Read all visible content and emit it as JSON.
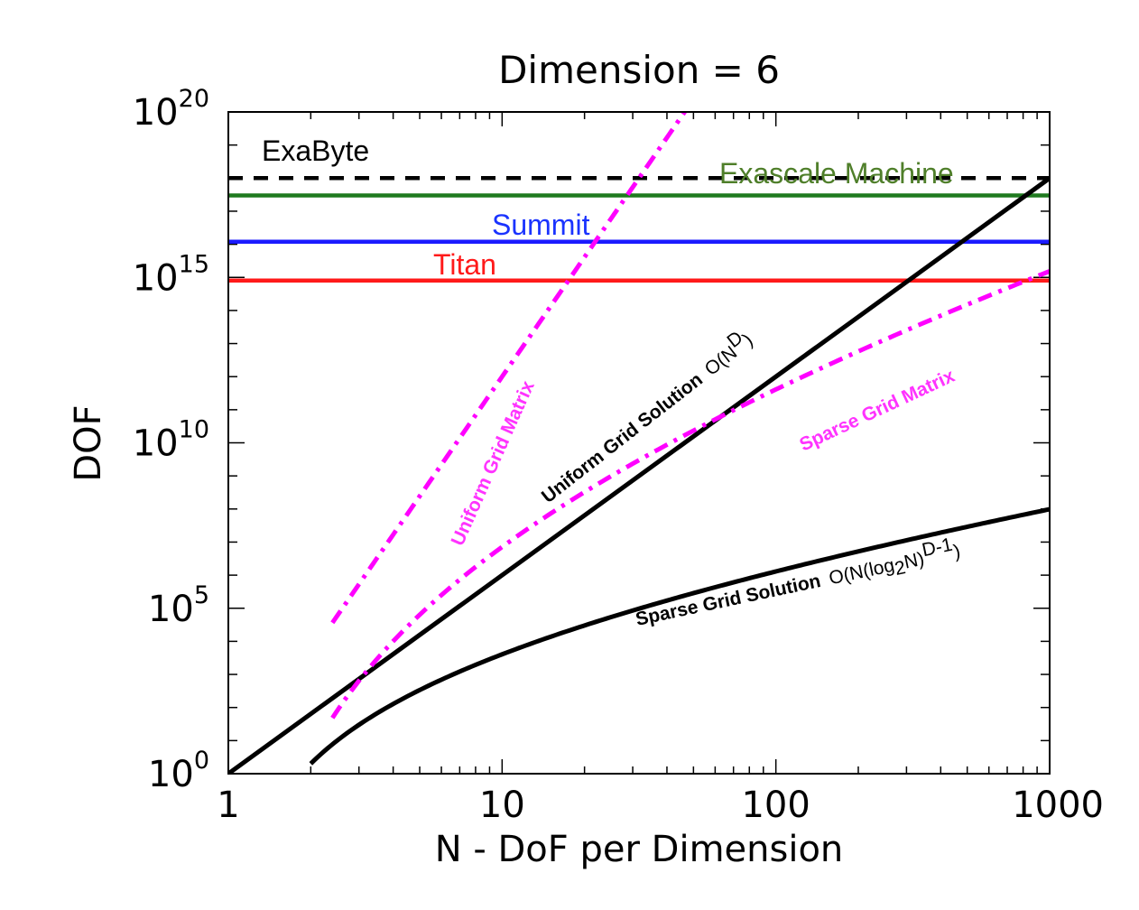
{
  "chart_data": {
    "type": "line",
    "title": "Dimension = 6",
    "xlabel": "N - DoF per Dimension",
    "ylabel": "DOF",
    "xscale": "log",
    "yscale": "log",
    "xlim": [
      1,
      1000
    ],
    "ylim": [
      1,
      1e+20
    ],
    "x_ticks": [
      "1",
      "10",
      "100",
      "1000"
    ],
    "y_ticks": [
      {
        "base": "10",
        "exp": "0"
      },
      {
        "base": "10",
        "exp": "5"
      },
      {
        "base": "10",
        "exp": "10"
      },
      {
        "base": "10",
        "exp": "15"
      },
      {
        "base": "10",
        "exp": "20"
      }
    ],
    "reference_lines": [
      {
        "label": "ExaByte",
        "y": 1e+18,
        "color": "#000000",
        "style": "dashed"
      },
      {
        "label": "Exascale Machine",
        "y": 3e+17,
        "color": "#1f7a1f",
        "label_color": "#4f7f2a",
        "style": "solid"
      },
      {
        "label": "Summit",
        "y": 1.2e+16,
        "color": "#1a1aff",
        "label_color": "#1a33ff",
        "style": "solid"
      },
      {
        "label": "Titan",
        "y": 800000000000000.0,
        "color": "#ff1a1a",
        "label_color": "#ff1a1a",
        "style": "solid"
      }
    ],
    "series": [
      {
        "name": "Uniform Grid Solution",
        "note": "O(N",
        "note_sup": "D",
        "note_end": ")",
        "color": "#000000",
        "style": "solid",
        "formula": "uniform_solution",
        "x": [
          1,
          1000
        ]
      },
      {
        "name": "Uniform Grid Matrix",
        "color": "#ff00ff",
        "style": "dashdot",
        "formula": "uniform_matrix",
        "x": [
          2.4,
          105
        ]
      },
      {
        "name": "Sparse Grid Solution",
        "note": "O(N(log",
        "note_sub": "2",
        "note_mid": "N)",
        "note_sup": "D-1",
        "note_end": ")",
        "color": "#000000",
        "style": "solid",
        "formula": "sparse_solution",
        "x": [
          2,
          1000
        ]
      },
      {
        "name": "Sparse Grid Matrix",
        "color": "#ff00ff",
        "style": "dashdot",
        "formula": "sparse_matrix",
        "x": [
          2.4,
          1000
        ]
      }
    ]
  }
}
